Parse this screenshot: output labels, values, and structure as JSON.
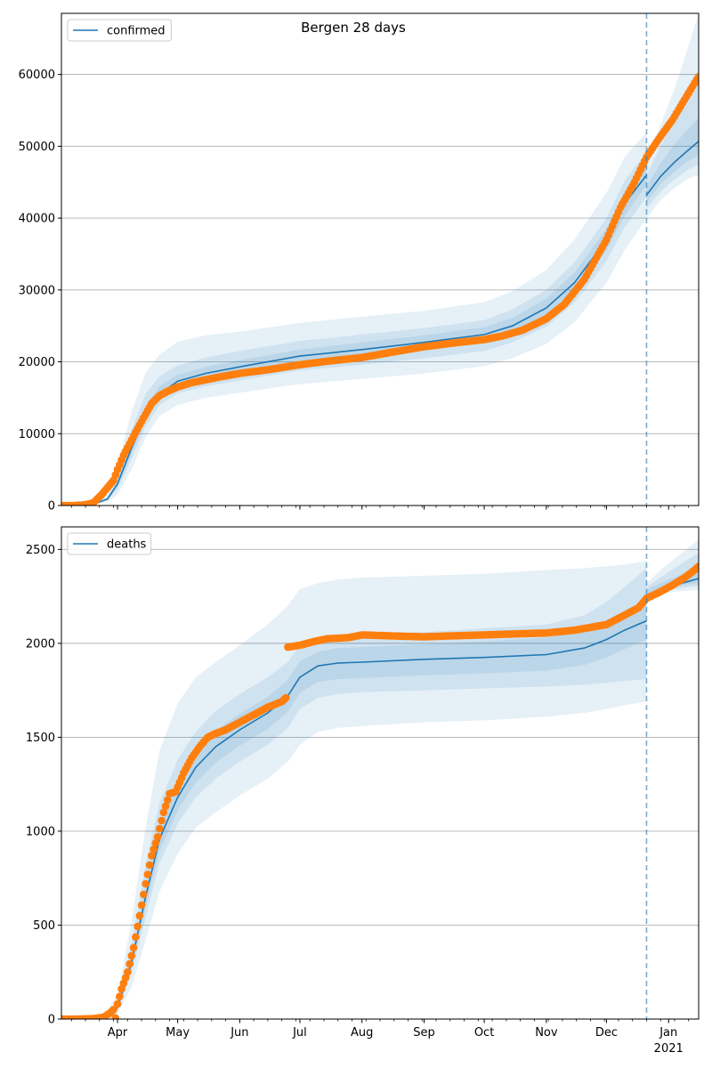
{
  "figure_title": "Bergen 28 days",
  "colors": {
    "fit": "#1f77b4",
    "band": "#1f77b4",
    "observed": "#ff7f0e",
    "forecast_line": "#1f77b4",
    "grid": "#b0b0b0"
  },
  "x_ticks": [
    {
      "label": "Apr",
      "date": "2020-04-01"
    },
    {
      "label": "May",
      "date": "2020-05-01"
    },
    {
      "label": "Jun",
      "date": "2020-06-01"
    },
    {
      "label": "Jul",
      "date": "2020-07-01"
    },
    {
      "label": "Aug",
      "date": "2020-08-01"
    },
    {
      "label": "Sep",
      "date": "2020-09-01"
    },
    {
      "label": "Oct",
      "date": "2020-10-01"
    },
    {
      "label": "Nov",
      "date": "2020-11-01"
    },
    {
      "label": "Dec",
      "date": "2020-12-01"
    },
    {
      "label": "Jan",
      "date": "2021-01-01"
    }
  ],
  "year_label": "2021",
  "chart_data": [
    {
      "type": "line",
      "panel": "confirmed",
      "legend": "confirmed",
      "legend_position": "top-left",
      "grid": "horizontal",
      "xlim": [
        "2020-03-04",
        "2021-01-16"
      ],
      "ylim": [
        0,
        68500
      ],
      "yticks": [
        0,
        10000,
        20000,
        30000,
        40000,
        50000,
        60000
      ],
      "forecast_start": "2020-12-21",
      "fit": {
        "x": [
          "2020-03-04",
          "2020-03-20",
          "2020-03-27",
          "2020-04-01",
          "2020-04-08",
          "2020-04-15",
          "2020-04-22",
          "2020-05-01",
          "2020-05-15",
          "2020-06-01",
          "2020-07-01",
          "2020-08-01",
          "2020-09-01",
          "2020-10-01",
          "2020-10-15",
          "2020-11-01",
          "2020-11-15",
          "2020-12-01",
          "2020-12-10",
          "2020-12-21"
        ],
        "y": [
          0,
          200,
          900,
          3000,
          8000,
          12500,
          15500,
          17300,
          18400,
          19300,
          20800,
          21700,
          22700,
          23800,
          25000,
          27500,
          31000,
          37000,
          42000,
          46000
        ]
      },
      "forecast": {
        "x": [
          "2020-12-21",
          "2020-12-28",
          "2021-01-04",
          "2021-01-11",
          "2021-01-16"
        ],
        "y": [
          43200,
          45800,
          47800,
          49500,
          50700
        ]
      },
      "bands_fit": {
        "x": [
          "2020-03-04",
          "2020-03-20",
          "2020-03-27",
          "2020-04-01",
          "2020-04-08",
          "2020-04-15",
          "2020-04-22",
          "2020-05-01",
          "2020-05-15",
          "2020-06-01",
          "2020-07-01",
          "2020-08-01",
          "2020-09-01",
          "2020-10-01",
          "2020-10-15",
          "2020-11-01",
          "2020-11-15",
          "2020-12-01",
          "2020-12-10",
          "2020-12-21"
        ],
        "outer_lo": [
          0,
          100,
          500,
          1500,
          5000,
          9500,
          12500,
          14000,
          15000,
          15700,
          16900,
          17600,
          18400,
          19400,
          20500,
          22500,
          25500,
          31000,
          35500,
          40000
        ],
        "outer_hi": [
          0,
          400,
          1600,
          5500,
          13000,
          18500,
          21000,
          22800,
          23700,
          24200,
          25400,
          26300,
          27100,
          28300,
          29800,
          32800,
          37000,
          43500,
          48500,
          52000
        ],
        "mid_lo": [
          0,
          150,
          700,
          2200,
          6500,
          11000,
          14000,
          15600,
          16600,
          17400,
          18800,
          19600,
          20500,
          21500,
          22700,
          24900,
          28200,
          34000,
          38700,
          43000
        ],
        "mid_hi": [
          0,
          300,
          1200,
          4200,
          10500,
          15500,
          18000,
          19500,
          20600,
          21500,
          22900,
          23800,
          24700,
          25800,
          27300,
          30000,
          33800,
          40000,
          45200,
          49200
        ],
        "inner_lo": [
          0,
          180,
          800,
          2600,
          7300,
          11800,
          14800,
          16500,
          17500,
          18400,
          19800,
          20600,
          21600,
          22700,
          23900,
          26200,
          29600,
          35500,
          40300,
          44600
        ],
        "inner_hi": [
          0,
          240,
          1000,
          3500,
          9000,
          13800,
          16600,
          18200,
          19300,
          20200,
          21700,
          22700,
          23700,
          24800,
          26100,
          28800,
          32400,
          38500,
          43600,
          47600
        ]
      },
      "bands_forecast": {
        "x": [
          "2020-12-21",
          "2020-12-28",
          "2021-01-04",
          "2021-01-11",
          "2021-01-16"
        ],
        "outer_lo": [
          40000,
          42500,
          44200,
          45500,
          46000
        ],
        "outer_hi": [
          48000,
          53000,
          58000,
          64000,
          68500
        ],
        "mid_lo": [
          41300,
          43700,
          45400,
          46800,
          47400
        ],
        "mid_hi": [
          46000,
          50000,
          54000,
          57500,
          59500
        ],
        "inner_lo": [
          42200,
          44700,
          46500,
          48000,
          48700
        ],
        "inner_hi": [
          44500,
          47600,
          50300,
          52500,
          54000
        ]
      },
      "observed": {
        "x": [
          "2020-03-04",
          "2020-03-10",
          "2020-03-16",
          "2020-03-20",
          "2020-03-24",
          "2020-03-27",
          "2020-03-30",
          "2020-04-01",
          "2020-04-04",
          "2020-04-07",
          "2020-04-10",
          "2020-04-14",
          "2020-04-18",
          "2020-04-22",
          "2020-04-26",
          "2020-05-01",
          "2020-05-08",
          "2020-05-15",
          "2020-05-22",
          "2020-06-01",
          "2020-06-15",
          "2020-07-01",
          "2020-07-15",
          "2020-08-01",
          "2020-08-15",
          "2020-09-01",
          "2020-09-15",
          "2020-10-01",
          "2020-10-10",
          "2020-10-20",
          "2020-11-01",
          "2020-11-10",
          "2020-11-20",
          "2020-12-01",
          "2020-12-08",
          "2020-12-15",
          "2020-12-21",
          "2020-12-27",
          "2021-01-03",
          "2021-01-09",
          "2021-01-14",
          "2021-01-16"
        ],
        "y": [
          0,
          0,
          100,
          400,
          1500,
          2500,
          3500,
          5000,
          7000,
          8600,
          10200,
          12200,
          14200,
          15300,
          15900,
          16500,
          17100,
          17500,
          17900,
          18400,
          18900,
          19600,
          20100,
          20600,
          21300,
          22100,
          22600,
          23100,
          23600,
          24400,
          26000,
          28000,
          31500,
          37000,
          41500,
          45000,
          48500,
          51000,
          53700,
          56500,
          58800,
          59700
        ]
      }
    },
    {
      "type": "line",
      "panel": "deaths",
      "legend": "deaths",
      "legend_position": "top-left",
      "grid": "horizontal",
      "xlim": [
        "2020-03-04",
        "2021-01-16"
      ],
      "ylim": [
        0,
        2620
      ],
      "yticks": [
        0,
        500,
        1000,
        1500,
        2000,
        2500
      ],
      "forecast_start": "2020-12-21",
      "fit": {
        "x": [
          "2020-03-04",
          "2020-03-25",
          "2020-04-01",
          "2020-04-08",
          "2020-04-15",
          "2020-04-22",
          "2020-05-01",
          "2020-05-10",
          "2020-05-20",
          "2020-06-01",
          "2020-06-15",
          "2020-06-25",
          "2020-07-01",
          "2020-07-10",
          "2020-07-20",
          "2020-08-01",
          "2020-09-01",
          "2020-10-01",
          "2020-11-01",
          "2020-11-20",
          "2020-12-01",
          "2020-12-10",
          "2020-12-21"
        ],
        "y": [
          0,
          5,
          60,
          300,
          650,
          960,
          1180,
          1340,
          1450,
          1540,
          1630,
          1720,
          1820,
          1880,
          1895,
          1900,
          1915,
          1925,
          1940,
          1975,
          2020,
          2070,
          2120
        ]
      },
      "forecast": {
        "x": [
          "2020-12-21",
          "2020-12-28",
          "2021-01-04",
          "2021-01-11",
          "2021-01-16"
        ],
        "y": [
          2250,
          2285,
          2310,
          2330,
          2345
        ]
      },
      "bands_fit": {
        "x": [
          "2020-03-04",
          "2020-03-25",
          "2020-04-01",
          "2020-04-08",
          "2020-04-15",
          "2020-04-22",
          "2020-05-01",
          "2020-05-10",
          "2020-05-20",
          "2020-06-01",
          "2020-06-15",
          "2020-06-25",
          "2020-07-01",
          "2020-07-10",
          "2020-07-20",
          "2020-08-01",
          "2020-09-01",
          "2020-10-01",
          "2020-11-01",
          "2020-11-20",
          "2020-12-01",
          "2020-12-10",
          "2020-12-21"
        ],
        "outer_lo": [
          0,
          2,
          30,
          170,
          420,
          680,
          880,
          1020,
          1100,
          1190,
          1280,
          1370,
          1460,
          1530,
          1550,
          1560,
          1580,
          1590,
          1610,
          1630,
          1650,
          1670,
          1690
        ],
        "outer_hi": [
          0,
          15,
          130,
          520,
          1020,
          1430,
          1680,
          1820,
          1900,
          1990,
          2100,
          2200,
          2290,
          2320,
          2340,
          2350,
          2360,
          2370,
          2390,
          2400,
          2410,
          2420,
          2440
        ],
        "mid_lo": [
          0,
          3,
          45,
          240,
          540,
          830,
          1040,
          1180,
          1280,
          1370,
          1460,
          1550,
          1650,
          1710,
          1730,
          1740,
          1750,
          1760,
          1770,
          1780,
          1790,
          1800,
          1810
        ],
        "mid_hi": [
          0,
          10,
          95,
          400,
          820,
          1150,
          1380,
          1530,
          1640,
          1730,
          1820,
          1900,
          1990,
          2030,
          2040,
          2050,
          2060,
          2080,
          2100,
          2150,
          2220,
          2300,
          2400
        ],
        "inner_lo": [
          0,
          4,
          52,
          270,
          595,
          895,
          1110,
          1260,
          1365,
          1455,
          1545,
          1635,
          1735,
          1795,
          1810,
          1815,
          1830,
          1840,
          1855,
          1885,
          1925,
          1970,
          2020
        ],
        "inner_hi": [
          0,
          7,
          75,
          335,
          715,
          1030,
          1255,
          1425,
          1535,
          1625,
          1715,
          1805,
          1905,
          1955,
          1975,
          1980,
          1995,
          2010,
          2030,
          2060,
          2110,
          2170,
          2220
        ]
      },
      "bands_forecast": {
        "x": [
          "2020-12-21",
          "2020-12-28",
          "2021-01-04",
          "2021-01-11",
          "2021-01-16"
        ],
        "outer_lo": [
          2250,
          2265,
          2275,
          2280,
          2285
        ],
        "outer_hi": [
          2320,
          2390,
          2450,
          2510,
          2550
        ],
        "mid_lo": [
          2260,
          2275,
          2290,
          2300,
          2305
        ],
        "mid_hi": [
          2300,
          2350,
          2400,
          2450,
          2480
        ],
        "inner_lo": [
          2265,
          2285,
          2300,
          2315,
          2320
        ],
        "inner_hi": [
          2285,
          2320,
          2350,
          2385,
          2400
        ]
      },
      "observed": {
        "x": [
          "2020-03-04",
          "2020-03-12",
          "2020-03-20",
          "2020-03-25",
          "2020-03-28",
          "2020-03-30",
          "2020-03-31",
          "2020-04-01",
          "2020-04-03",
          "2020-04-06",
          "2020-04-09",
          "2020-04-12",
          "2020-04-15",
          "2020-04-18",
          "2020-04-21",
          "2020-04-24",
          "2020-04-27",
          "2020-04-30",
          "2020-05-04",
          "2020-05-08",
          "2020-05-12",
          "2020-05-16",
          "2020-05-20",
          "2020-05-25",
          "2020-06-01",
          "2020-06-08",
          "2020-06-15",
          "2020-06-22",
          "2020-06-24",
          "2020-06-25",
          "2020-07-01",
          "2020-07-08",
          "2020-07-15",
          "2020-07-25",
          "2020-08-01",
          "2020-08-15",
          "2020-09-01",
          "2020-09-15",
          "2020-10-01",
          "2020-10-15",
          "2020-11-01",
          "2020-11-15",
          "2020-12-01",
          "2020-12-10",
          "2020-12-17",
          "2020-12-21",
          "2020-12-27",
          "2021-01-03",
          "2021-01-09",
          "2021-01-14",
          "2021-01-16"
        ],
        "y": [
          0,
          0,
          2,
          10,
          30,
          50,
          5,
          80,
          160,
          250,
          380,
          550,
          720,
          870,
          970,
          1100,
          1200,
          1210,
          1310,
          1390,
          1450,
          1500,
          1520,
          1540,
          1580,
          1620,
          1660,
          1690,
          1710,
          1980,
          1990,
          2010,
          2025,
          2030,
          2045,
          2040,
          2035,
          2040,
          2045,
          2050,
          2055,
          2070,
          2100,
          2150,
          2190,
          2240,
          2270,
          2310,
          2350,
          2390,
          2410
        ]
      }
    }
  ]
}
